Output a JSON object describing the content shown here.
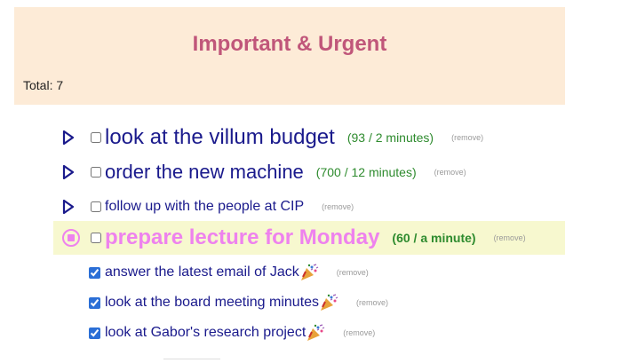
{
  "header": {
    "title": "Important & Urgent",
    "total": "Total: 7"
  },
  "tasks": [
    {
      "label": "look at the villum budget",
      "timer": "(93 / 2 minutes)",
      "remove": "(remove)"
    },
    {
      "label": "order the new machine",
      "timer": "(700 / 12 minutes)",
      "remove": "(remove)"
    },
    {
      "label": "follow up with the people at CIP",
      "remove": "(remove)"
    }
  ],
  "active_task": {
    "label": "prepare lecture for Monday",
    "timer": "(60 / a minute)",
    "remove": "(remove)"
  },
  "done_tasks": [
    {
      "label": "answer the latest email of Jack",
      "remove": "(remove)"
    },
    {
      "label": "look at the board meeting minutes",
      "remove": "(remove)"
    },
    {
      "label": "look at Gabor's research project",
      "remove": "(remove)"
    }
  ],
  "colors": {
    "header_bg": "#fdebd7",
    "title": "#c0567a",
    "task_text": "#1a1a8c",
    "timer_text": "#2e8b2e",
    "active_bg": "#f7f8cf",
    "active_text": "#ee82ee",
    "remove_text": "#9a9a9a"
  },
  "icons": {
    "start": "play-triangle-icon",
    "stop": "stop-circle-icon",
    "done": "party-popper-icon"
  }
}
